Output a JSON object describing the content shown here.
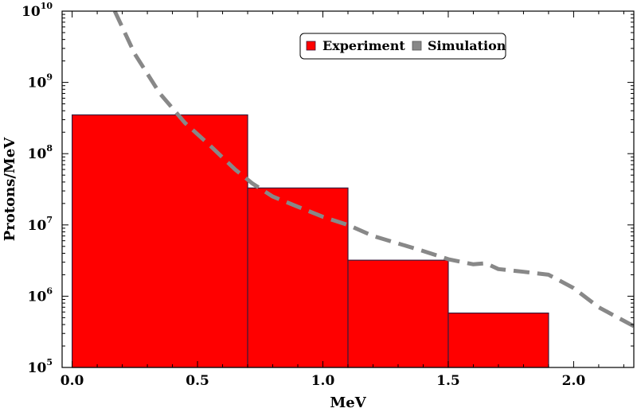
{
  "chart_data": {
    "type": "bar",
    "title": "",
    "xlabel": "MeV",
    "ylabel": "Protons/MeV",
    "xlim": [
      -0.04,
      2.24
    ],
    "ylim": [
      100000,
      10000000000
    ],
    "yscale": "log",
    "legend_position": "top-right",
    "x_ticks": [
      {
        "value": 0.0,
        "label": "0.0"
      },
      {
        "value": 0.5,
        "label": "0.5"
      },
      {
        "value": 1.0,
        "label": "1.0"
      },
      {
        "value": 1.5,
        "label": "1.5"
      },
      {
        "value": 2.0,
        "label": "2.0"
      }
    ],
    "y_ticks": [
      {
        "value": 100000,
        "base": "10",
        "exp": "5"
      },
      {
        "value": 1000000,
        "base": "10",
        "exp": "6"
      },
      {
        "value": 10000000,
        "base": "10",
        "exp": "7"
      },
      {
        "value": 100000000,
        "base": "10",
        "exp": "8"
      },
      {
        "value": 1000000000,
        "base": "10",
        "exp": "9"
      },
      {
        "value": 10000000000,
        "base": "10",
        "exp": "10"
      }
    ],
    "series": [
      {
        "name": "Experiment",
        "kind": "histogram",
        "color": "#ff0000",
        "edge_color": "#3a1a3a",
        "bins": [
          {
            "x0": 0.0,
            "x1": 0.7,
            "value": 350000000
          },
          {
            "x0": 0.7,
            "x1": 1.1,
            "value": 33000000
          },
          {
            "x0": 1.1,
            "x1": 1.5,
            "value": 3200000
          },
          {
            "x0": 1.5,
            "x1": 1.9,
            "value": 580000
          }
        ]
      },
      {
        "name": "Simulation",
        "kind": "dashed-line",
        "color": "#888888",
        "x": [
          0.17,
          0.25,
          0.35,
          0.45,
          0.55,
          0.65,
          0.72,
          0.8,
          0.9,
          1.0,
          1.1,
          1.2,
          1.3,
          1.4,
          1.5,
          1.6,
          1.65,
          1.7,
          1.8,
          1.9,
          2.0,
          2.1,
          2.24
        ],
        "values": [
          10000000000,
          2500000000,
          700000000,
          270000000,
          130000000,
          60000000,
          38000000,
          25000000,
          18000000,
          13000000,
          10000000,
          7000000,
          5500000,
          4300000,
          3300000,
          2800000,
          2900000,
          2400000,
          2200000,
          2000000,
          1300000,
          700000,
          380000
        ]
      }
    ]
  }
}
